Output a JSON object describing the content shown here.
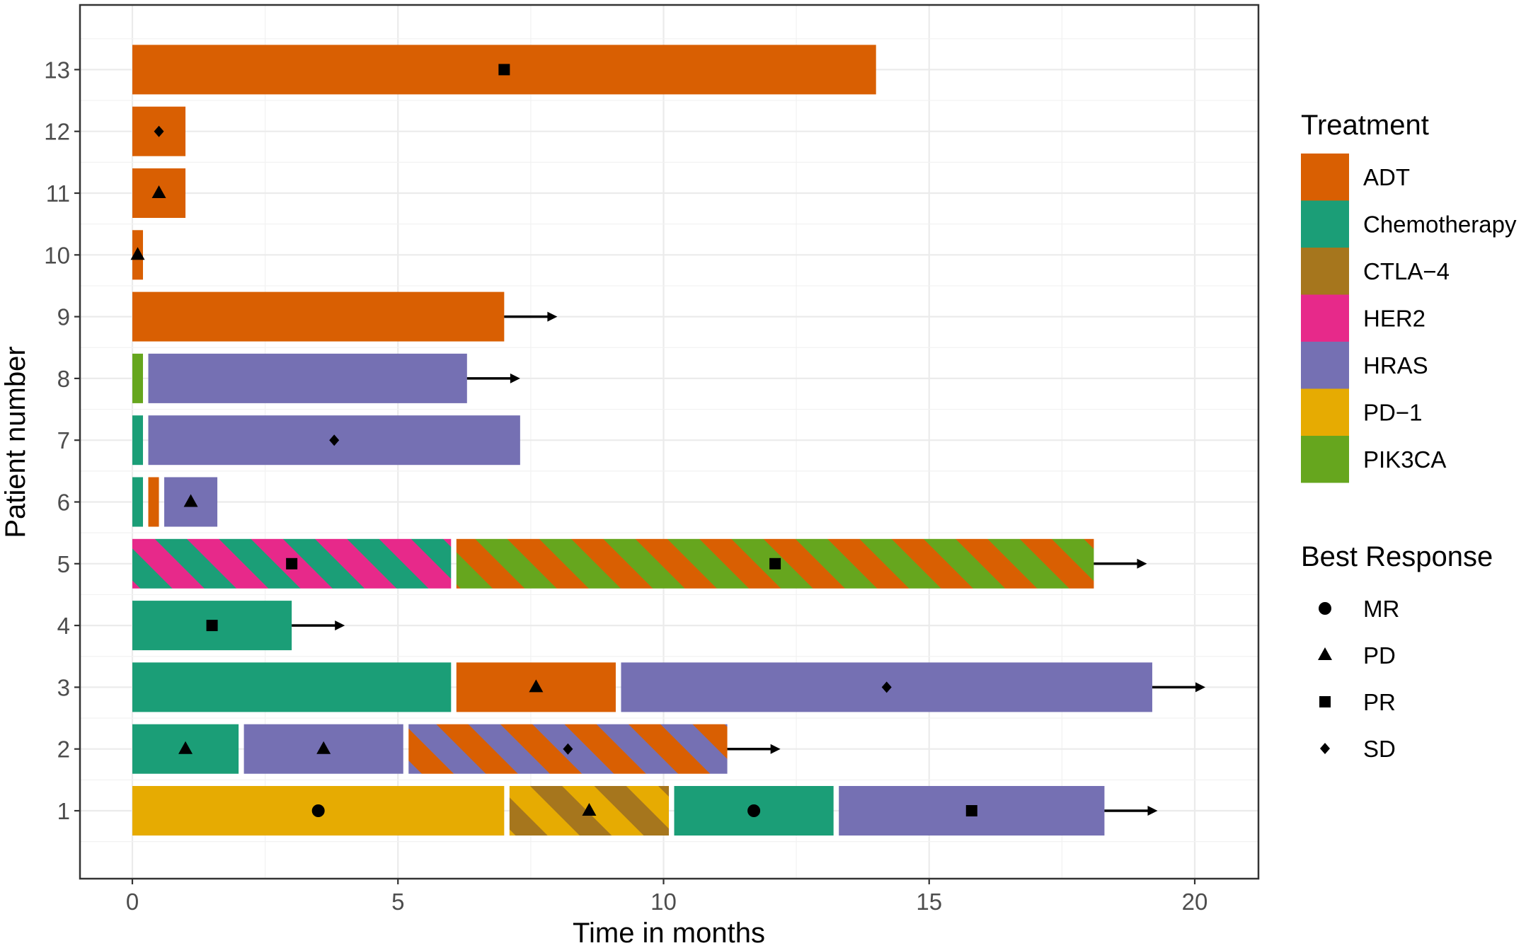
{
  "chart_data": {
    "type": "bar",
    "orientation": "horizontal",
    "title": "",
    "xlabel": "Time in months",
    "ylabel": "Patient number",
    "xlim": [
      -2,
      21.3
    ],
    "ylim": [
      0,
      14
    ],
    "grid": true,
    "x_ticks": [
      0,
      5,
      10,
      15,
      20
    ],
    "x_tick_labels": [
      "0",
      "5",
      "10",
      "15",
      "20"
    ],
    "y_ticks": [
      1,
      2,
      3,
      4,
      5,
      6,
      7,
      8,
      9,
      10,
      11,
      12,
      13
    ],
    "y_tick_labels": [
      "1",
      "2",
      "3",
      "4",
      "5",
      "6",
      "7",
      "8",
      "9",
      "10",
      "11",
      "12",
      "13"
    ],
    "treatment_legend": {
      "title": "Treatment",
      "entries": [
        {
          "name": "ADT",
          "color": "#D95F02"
        },
        {
          "name": "Chemotherapy",
          "color": "#1B9E77"
        },
        {
          "name": "CTLA−4",
          "color": "#A6761D"
        },
        {
          "name": "HER2",
          "color": "#E7298A"
        },
        {
          "name": "HRAS",
          "color": "#7570B3"
        },
        {
          "name": "PD−1",
          "color": "#E6AB02"
        },
        {
          "name": "PIK3CA",
          "color": "#66A61E"
        }
      ]
    },
    "response_legend": {
      "title": "Best Response",
      "entries": [
        {
          "name": "MR",
          "shape": "circle"
        },
        {
          "name": "PD",
          "shape": "triangle"
        },
        {
          "name": "PR",
          "shape": "square"
        },
        {
          "name": "SD",
          "shape": "diamond"
        }
      ]
    },
    "patients": [
      {
        "patient": 13,
        "ongoing_arrow_to": null,
        "segments": [
          {
            "start": 0,
            "end": 14,
            "treatments": [
              "ADT"
            ],
            "response": "PR",
            "response_at": 7
          }
        ]
      },
      {
        "patient": 12,
        "ongoing_arrow_to": null,
        "segments": [
          {
            "start": 0,
            "end": 1,
            "treatments": [
              "ADT"
            ],
            "response": "SD",
            "response_at": 0.5
          }
        ]
      },
      {
        "patient": 11,
        "ongoing_arrow_to": null,
        "segments": [
          {
            "start": 0,
            "end": 1,
            "treatments": [
              "ADT"
            ],
            "response": "PD",
            "response_at": 0.5
          }
        ]
      },
      {
        "patient": 10,
        "ongoing_arrow_to": null,
        "segments": [
          {
            "start": 0,
            "end": 0.2,
            "treatments": [
              "ADT"
            ],
            "response": "PD",
            "response_at": 0.1
          }
        ]
      },
      {
        "patient": 9,
        "ongoing_arrow_to": 8,
        "segments": [
          {
            "start": 0,
            "end": 7,
            "treatments": [
              "ADT"
            ],
            "response": null,
            "response_at": null
          }
        ]
      },
      {
        "patient": 8,
        "ongoing_arrow_to": 7.3,
        "segments": [
          {
            "start": 0,
            "end": 0.2,
            "treatments": [
              "PIK3CA"
            ],
            "response": null,
            "response_at": null
          },
          {
            "start": 0.3,
            "end": 6.3,
            "treatments": [
              "HRAS"
            ],
            "response": null,
            "response_at": null
          }
        ]
      },
      {
        "patient": 7,
        "ongoing_arrow_to": null,
        "segments": [
          {
            "start": 0,
            "end": 0.2,
            "treatments": [
              "Chemotherapy"
            ],
            "response": null,
            "response_at": null
          },
          {
            "start": 0.3,
            "end": 7.3,
            "treatments": [
              "HRAS"
            ],
            "response": "SD",
            "response_at": 3.8
          }
        ]
      },
      {
        "patient": 6,
        "ongoing_arrow_to": null,
        "segments": [
          {
            "start": 0,
            "end": 0.2,
            "treatments": [
              "Chemotherapy"
            ],
            "response": null,
            "response_at": null
          },
          {
            "start": 0.3,
            "end": 0.5,
            "treatments": [
              "ADT"
            ],
            "response": null,
            "response_at": null
          },
          {
            "start": 0.6,
            "end": 1.6,
            "treatments": [
              "HRAS"
            ],
            "response": "PD",
            "response_at": 1.1
          }
        ]
      },
      {
        "patient": 5,
        "ongoing_arrow_to": 19.1,
        "segments": [
          {
            "start": 0,
            "end": 6,
            "treatments": [
              "Chemotherapy",
              "HER2"
            ],
            "response": "PR",
            "response_at": 3
          },
          {
            "start": 6.1,
            "end": 18.1,
            "treatments": [
              "PIK3CA",
              "ADT"
            ],
            "response": "PR",
            "response_at": 12.1
          }
        ]
      },
      {
        "patient": 4,
        "ongoing_arrow_to": 4,
        "segments": [
          {
            "start": 0,
            "end": 3,
            "treatments": [
              "Chemotherapy"
            ],
            "response": "PR",
            "response_at": 1.5
          }
        ]
      },
      {
        "patient": 3,
        "ongoing_arrow_to": 20.2,
        "segments": [
          {
            "start": 0,
            "end": 6,
            "treatments": [
              "Chemotherapy"
            ],
            "response": null,
            "response_at": null
          },
          {
            "start": 6.1,
            "end": 9.1,
            "treatments": [
              "ADT"
            ],
            "response": "PD",
            "response_at": 7.6
          },
          {
            "start": 9.2,
            "end": 19.2,
            "treatments": [
              "HRAS"
            ],
            "response": "SD",
            "response_at": 14.2
          }
        ]
      },
      {
        "patient": 2,
        "ongoing_arrow_to": 12.2,
        "segments": [
          {
            "start": 0,
            "end": 2,
            "treatments": [
              "Chemotherapy"
            ],
            "response": "PD",
            "response_at": 1
          },
          {
            "start": 2.1,
            "end": 5.1,
            "treatments": [
              "HRAS"
            ],
            "response": "PD",
            "response_at": 3.6
          },
          {
            "start": 5.2,
            "end": 11.2,
            "treatments": [
              "HRAS",
              "ADT"
            ],
            "response": "SD",
            "response_at": 8.2
          }
        ]
      },
      {
        "patient": 1,
        "ongoing_arrow_to": 19.3,
        "segments": [
          {
            "start": 0,
            "end": 7,
            "treatments": [
              "PD−1"
            ],
            "response": "MR",
            "response_at": 3.5
          },
          {
            "start": 7.1,
            "end": 10.1,
            "treatments": [
              "CTLA−4",
              "PD−1"
            ],
            "response": "PD",
            "response_at": 8.6
          },
          {
            "start": 10.2,
            "end": 13.2,
            "treatments": [
              "Chemotherapy"
            ],
            "response": "MR",
            "response_at": 11.7
          },
          {
            "start": 13.3,
            "end": 18.3,
            "treatments": [
              "HRAS"
            ],
            "response": "PR",
            "response_at": 15.8
          }
        ]
      }
    ]
  }
}
